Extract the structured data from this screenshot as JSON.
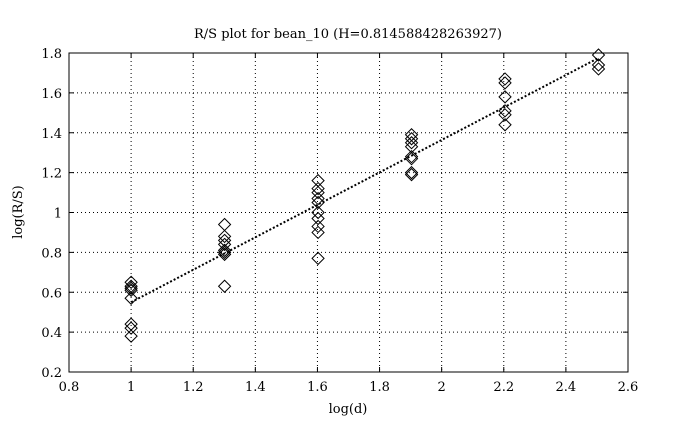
{
  "chart_data": {
    "type": "scatter",
    "title": "R/S plot for bean_10 (H=0.814588428263927)",
    "xlabel": "log(d)",
    "ylabel": "log(R/S)",
    "xlim": [
      0.8,
      2.6
    ],
    "ylim": [
      0.2,
      1.8
    ],
    "xticks": [
      0.8,
      1,
      1.2,
      1.4,
      1.6,
      1.8,
      2,
      2.2,
      2.4,
      2.6
    ],
    "yticks": [
      0.2,
      0.4,
      0.6,
      0.8,
      1,
      1.2,
      1.4,
      1.6,
      1.8
    ],
    "xtick_labels": [
      "0.8",
      "1",
      "1.2",
      "1.4",
      "1.6",
      "1.8",
      "2",
      "2.2",
      "2.4",
      "2.6"
    ],
    "ytick_labels": [
      "0.2",
      "0.4",
      "0.6",
      "0.8",
      "1",
      "1.2",
      "1.4",
      "1.6",
      "1.8"
    ],
    "grid": true,
    "marker": "diamond",
    "series": [
      {
        "points": [
          [
            1.0,
            0.65
          ],
          [
            1.0,
            0.63
          ],
          [
            1.0,
            0.62
          ],
          [
            1.0,
            0.61
          ],
          [
            1.0,
            0.57
          ],
          [
            1.0,
            0.44
          ],
          [
            1.0,
            0.42
          ],
          [
            1.0,
            0.38
          ],
          [
            1.301,
            0.94
          ],
          [
            1.301,
            0.88
          ],
          [
            1.301,
            0.86
          ],
          [
            1.301,
            0.84
          ],
          [
            1.301,
            0.81
          ],
          [
            1.301,
            0.8
          ],
          [
            1.301,
            0.79
          ],
          [
            1.301,
            0.63
          ],
          [
            1.602,
            1.16
          ],
          [
            1.602,
            1.12
          ],
          [
            1.602,
            1.1
          ],
          [
            1.602,
            1.07
          ],
          [
            1.602,
            1.05
          ],
          [
            1.602,
            1.0
          ],
          [
            1.602,
            0.97
          ],
          [
            1.602,
            0.93
          ],
          [
            1.602,
            0.9
          ],
          [
            1.602,
            0.77
          ],
          [
            1.903,
            1.39
          ],
          [
            1.903,
            1.37
          ],
          [
            1.903,
            1.35
          ],
          [
            1.903,
            1.33
          ],
          [
            1.903,
            1.28
          ],
          [
            1.903,
            1.27
          ],
          [
            1.903,
            1.2
          ],
          [
            1.903,
            1.19
          ],
          [
            2.204,
            1.67
          ],
          [
            2.204,
            1.65
          ],
          [
            2.204,
            1.58
          ],
          [
            2.204,
            1.51
          ],
          [
            2.204,
            1.49
          ],
          [
            2.204,
            1.44
          ],
          [
            2.505,
            1.79
          ],
          [
            2.505,
            1.74
          ],
          [
            2.505,
            1.72
          ]
        ]
      }
    ],
    "fit_line": {
      "style": "dotted",
      "x": [
        1.0,
        2.505
      ],
      "y": [
        0.55,
        1.775
      ]
    }
  }
}
